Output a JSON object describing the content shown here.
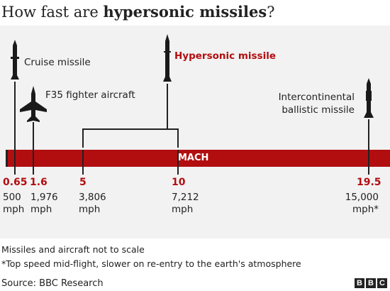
{
  "title": {
    "prefix": "How fast are ",
    "bold": "hypersonic missiles",
    "suffix": "?"
  },
  "labels": {
    "cruise": "Cruise missile",
    "f35": "F35 fighter aircraft",
    "hypersonic": "Hypersonic missile",
    "icbm": "Intercontinental\nballistic missile"
  },
  "scale": {
    "label": "MACH",
    "ticks": [
      {
        "mach": "0.65",
        "speed": "500\nmph"
      },
      {
        "mach": "1.6",
        "speed": "1,976\nmph"
      },
      {
        "mach": "5",
        "speed": "3,806\nmph"
      },
      {
        "mach": "10",
        "speed": "7,212\nmph"
      },
      {
        "mach": "19.5",
        "speed": "15,000\nmph*"
      }
    ]
  },
  "colors": {
    "accent": "#b20e10",
    "panel": "#f2f2f2",
    "text": "#222222"
  },
  "icons": [
    "cruise-missile-icon",
    "fighter-jet-icon",
    "hypersonic-missile-icon",
    "icbm-icon"
  ],
  "footnotes": {
    "scale_note": "Missiles and aircraft not to scale",
    "asterisk_note": "*Top speed mid-flight, slower on re-entry to the earth's atmosphere"
  },
  "source": "Source: BBC Research",
  "brand": [
    "B",
    "B",
    "C"
  ]
}
